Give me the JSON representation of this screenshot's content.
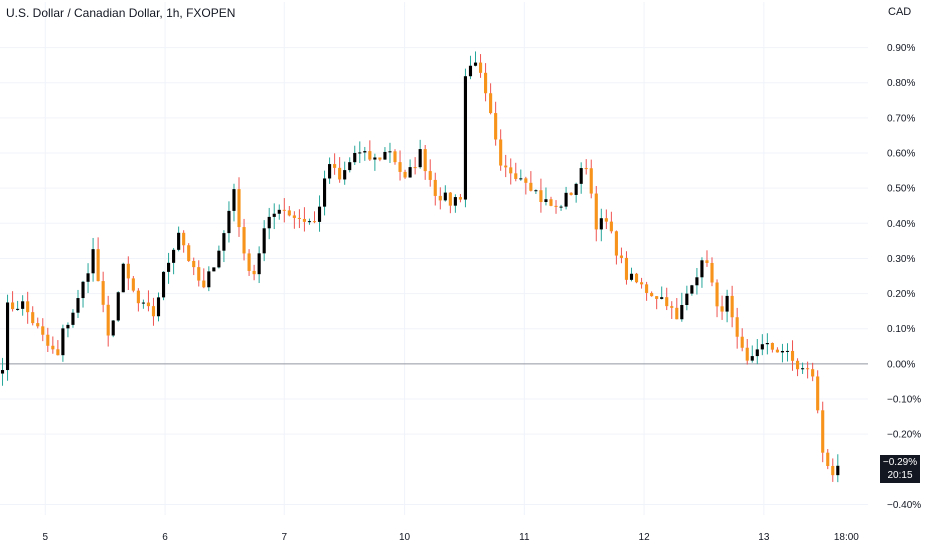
{
  "header": {
    "title": "U.S. Dollar / Canadian Dollar, 1h, FXOPEN",
    "currency": "CAD"
  },
  "last_value": {
    "value_label": "−0.29%",
    "countdown": "20:15"
  },
  "colors": {
    "up": "#000000",
    "down": "#f7931a",
    "wick_up": "#26a69a",
    "wick_down": "#ef5350",
    "grid": "#f0f3fa",
    "zero_line": "#9598a1"
  },
  "chart_data": {
    "type": "candlestick",
    "title": "U.S. Dollar / Canadian Dollar, 1h, FXOPEN",
    "y_unit": "%",
    "ylim": [
      -0.43,
      0.95
    ],
    "y_ticks": [
      0.9,
      0.8,
      0.7,
      0.6,
      0.5,
      0.4,
      0.3,
      0.2,
      0.1,
      0.0,
      -0.1,
      -0.2,
      -0.4
    ],
    "y_tick_labels": [
      "0.90%",
      "0.80%",
      "0.70%",
      "0.60%",
      "0.50%",
      "0.40%",
      "0.30%",
      "0.20%",
      "0.10%",
      "0.00%",
      "−0.10%",
      "−0.20%",
      "−0.40%"
    ],
    "x_ticks": [
      {
        "label": "5",
        "index": 8.5
      },
      {
        "label": "6",
        "index": 32.3
      },
      {
        "label": "7",
        "index": 56.0
      },
      {
        "label": "10",
        "index": 79.9
      },
      {
        "label": "11",
        "index": 103.7
      },
      {
        "label": "12",
        "index": 127.5
      },
      {
        "label": "13",
        "index": 151.3
      },
      {
        "label": "18:00",
        "index": 167.7
      }
    ],
    "x_range": [
      -0.5,
      172
    ],
    "grid": true,
    "baseline": 0.0,
    "last_value": -0.29,
    "waypoints": [
      [
        0,
        0.0
      ],
      [
        1,
        0.16
      ],
      [
        4,
        0.17
      ],
      [
        9,
        0.05
      ],
      [
        11,
        0.02
      ],
      [
        12,
        0.09
      ],
      [
        15,
        0.18
      ],
      [
        18,
        0.32
      ],
      [
        21,
        0.07
      ],
      [
        24,
        0.27
      ],
      [
        27,
        0.17
      ],
      [
        30,
        0.14
      ],
      [
        32,
        0.25
      ],
      [
        35,
        0.38
      ],
      [
        38,
        0.26
      ],
      [
        40,
        0.21
      ],
      [
        44,
        0.37
      ],
      [
        46,
        0.5
      ],
      [
        48,
        0.3
      ],
      [
        50,
        0.26
      ],
      [
        52,
        0.38
      ],
      [
        55,
        0.45
      ],
      [
        58,
        0.42
      ],
      [
        62,
        0.4
      ],
      [
        65,
        0.57
      ],
      [
        67,
        0.52
      ],
      [
        70,
        0.6
      ],
      [
        74,
        0.58
      ],
      [
        77,
        0.61
      ],
      [
        80,
        0.52
      ],
      [
        83,
        0.6
      ],
      [
        86,
        0.49
      ],
      [
        89,
        0.46
      ],
      [
        91,
        0.48
      ],
      [
        92,
        0.82
      ],
      [
        94,
        0.87
      ],
      [
        97,
        0.7
      ],
      [
        99,
        0.55
      ],
      [
        101,
        0.55
      ],
      [
        104,
        0.53
      ],
      [
        107,
        0.47
      ],
      [
        110,
        0.44
      ],
      [
        113,
        0.49
      ],
      [
        116,
        0.57
      ],
      [
        118,
        0.4
      ],
      [
        120,
        0.4
      ],
      [
        124,
        0.25
      ],
      [
        128,
        0.21
      ],
      [
        132,
        0.18
      ],
      [
        134,
        0.12
      ],
      [
        137,
        0.24
      ],
      [
        140,
        0.3
      ],
      [
        142,
        0.15
      ],
      [
        144,
        0.18
      ],
      [
        146,
        0.06
      ],
      [
        148,
        0.0
      ],
      [
        150,
        0.05
      ],
      [
        155,
        0.04
      ],
      [
        158,
        -0.01
      ],
      [
        161,
        -0.03
      ],
      [
        163,
        -0.25
      ],
      [
        165,
        -0.31
      ],
      [
        166,
        -0.29
      ]
    ]
  }
}
